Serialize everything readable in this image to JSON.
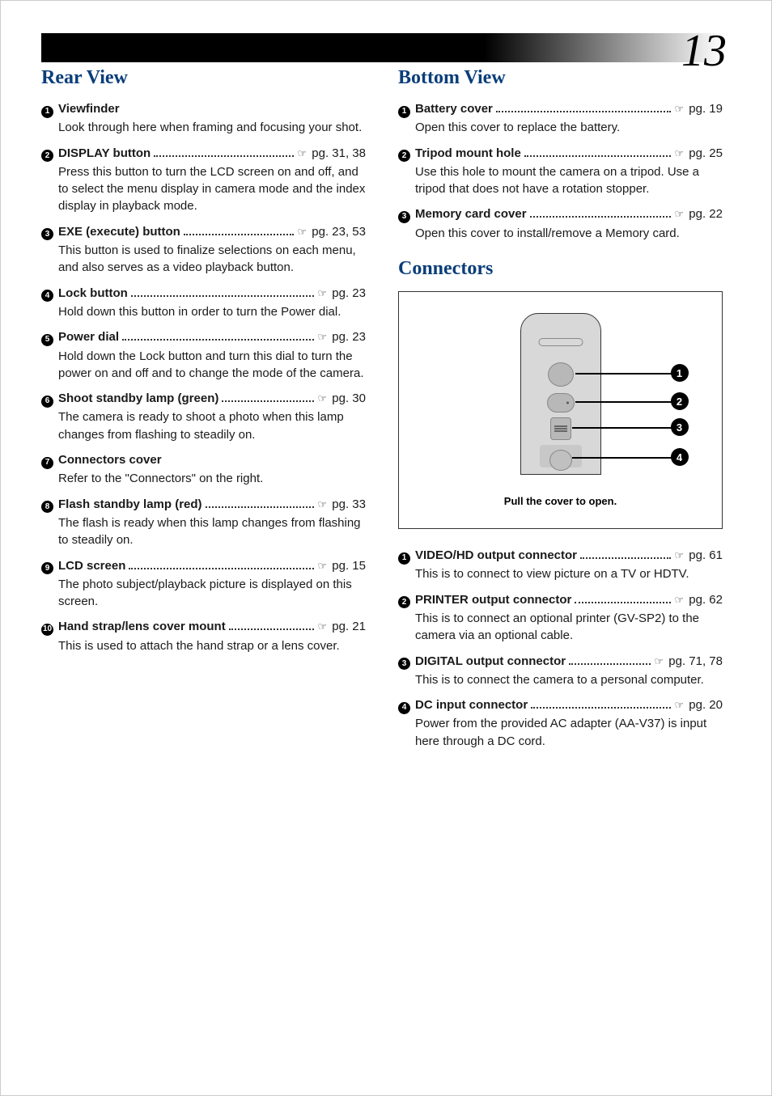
{
  "page_number": "13",
  "sections": {
    "rear": {
      "title": "Rear View",
      "items": [
        {
          "num": "1",
          "title": "Viewfinder",
          "ref": null,
          "body": "Look through here when framing and focusing your shot."
        },
        {
          "num": "2",
          "title": "DISPLAY button",
          "ref": "pg. 31, 38",
          "body": "Press this button to turn the LCD screen on and off, and to select the menu display in camera mode and the index display in playback mode."
        },
        {
          "num": "3",
          "title": "EXE (execute) button",
          "ref": "pg. 23, 53",
          "body": "This button is used to finalize selections on each menu, and also serves as a video playback button."
        },
        {
          "num": "4",
          "title": "Lock button",
          "ref": "pg. 23",
          "body": "Hold down this button in order to turn the Power dial."
        },
        {
          "num": "5",
          "title": "Power dial",
          "ref": "pg. 23",
          "body": "Hold down the Lock button and turn this dial to turn the power on and off and to change the mode of the camera."
        },
        {
          "num": "6",
          "title": "Shoot standby lamp (green)",
          "ref": "pg. 30",
          "body": "The camera is ready to shoot a photo when this lamp changes from flashing to steadily on."
        },
        {
          "num": "7",
          "title": "Connectors cover",
          "ref": null,
          "body": "Refer to the \"Connectors\" on the right."
        },
        {
          "num": "8",
          "title": "Flash standby lamp (red)",
          "ref": "pg. 33",
          "body": "The flash is ready when this lamp changes from flashing to steadily on."
        },
        {
          "num": "9",
          "title": "LCD screen",
          "ref": "pg. 15",
          "body": "The photo subject/playback picture is displayed on this screen."
        },
        {
          "num": "10",
          "title": "Hand strap/lens cover mount",
          "ref": "pg. 21",
          "body": "This is used to attach the hand strap or a lens cover."
        }
      ]
    },
    "bottom": {
      "title": "Bottom View",
      "items": [
        {
          "num": "1",
          "title": "Battery cover",
          "ref": "pg. 19",
          "body": "Open this cover to replace the battery."
        },
        {
          "num": "2",
          "title": "Tripod mount hole",
          "ref": "pg. 25",
          "body": "Use this hole to mount the camera on a tripod. Use a tripod that does not have a rotation stopper."
        },
        {
          "num": "3",
          "title": "Memory card cover",
          "ref": "pg. 22",
          "body": "Open this cover to install/remove a Memory card."
        }
      ]
    },
    "connectors": {
      "title": "Connectors",
      "diagram_caption": "Pull the cover to open.",
      "callouts": [
        "1",
        "2",
        "3",
        "4"
      ],
      "items": [
        {
          "num": "1",
          "title": "VIDEO/HD output connector",
          "ref": "pg. 61",
          "body": "This is to connect to view picture on a TV or HDTV."
        },
        {
          "num": "2",
          "title": "PRINTER output connector",
          "ref": "pg. 62",
          "body": "This is to connect an optional printer (GV-SP2) to the camera via an optional cable."
        },
        {
          "num": "3",
          "title": "DIGITAL output connector",
          "ref": "pg. 71, 78",
          "body": "This is to connect the camera to a personal computer."
        },
        {
          "num": "4",
          "title": "DC input connector",
          "ref": "pg. 20",
          "body": "Power from the provided AC adapter (AA-V37) is input here through a DC cord."
        }
      ]
    }
  },
  "colors": {
    "title_color": "#0a3e7a",
    "text_color": "#1a1a1a",
    "circle_bg": "#000000",
    "diagram_body": "#d8d8d8"
  }
}
